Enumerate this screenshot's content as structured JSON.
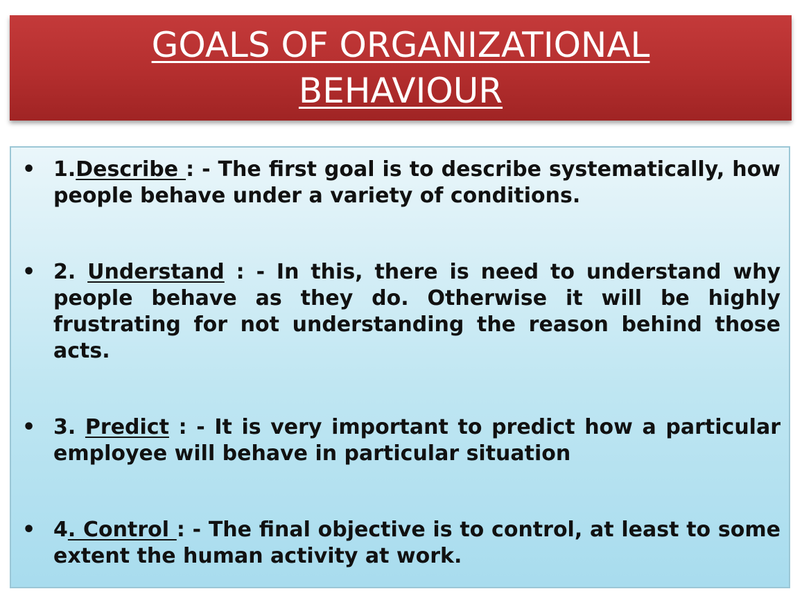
{
  "title": {
    "line1": "GOALS OF ORGANIZATIONAL",
    "line2": "BEHAVIOUR"
  },
  "colors": {
    "banner": "#b42e2e",
    "title_text": "#ffffff",
    "box_top": "#eaf6fa",
    "box_bottom": "#a8dcee",
    "body_text": "#111111"
  },
  "items": [
    {
      "number": "1.",
      "term": "Describe ",
      "separator": ": - ",
      "text": "The first goal is to describe systematically, how people behave under a variety of conditions."
    },
    {
      "number": "2. ",
      "term": "Understand",
      "separator": " : - ",
      "text": "In this, there is need to understand why people behave as they do. Otherwise it will be highly frustrating for not understanding the reason behind those acts."
    },
    {
      "number": "3. ",
      "term": "Predict",
      "separator": " : - ",
      "text": "It is very important to predict how a particular employee will behave in particular situation"
    },
    {
      "number": "4",
      "term": ". Control ",
      "separator": ": - ",
      "text": "The final objective is to control, at least to some extent the human activity at work."
    }
  ]
}
